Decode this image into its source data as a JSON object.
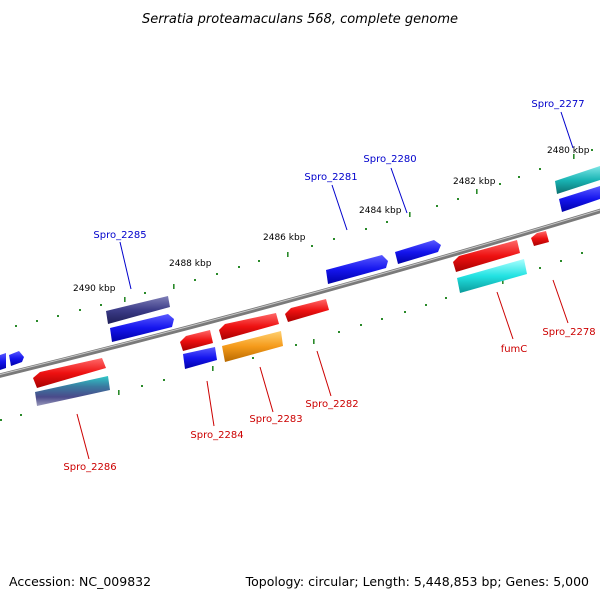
{
  "title": "Serratia proteamaculans 568, complete genome",
  "footer": {
    "accession": "Accession: NC_009832",
    "summary": "Topology: circular; Length: 5,448,853 bp; Genes: 5,000"
  },
  "kbp_ticks": [
    "2490 kbp",
    "2488 kbp",
    "2486 kbp",
    "2484 kbp",
    "2482 kbp",
    "2480 kbp"
  ],
  "gene_labels": {
    "top": [
      "Spro_2285",
      "Spro_2281",
      "Spro_2280",
      "Spro_2277"
    ],
    "bottom": [
      "Spro_2286",
      "Spro_2284",
      "Spro_2283",
      "Spro_2282",
      "fumC",
      "Spro_2278"
    ]
  },
  "colors": {
    "forward_gene": "#1010ee",
    "reverse_gene": "#ee1010",
    "backbone": "#7a7a7a",
    "tick_green": "#2a8a2a",
    "forward_label": "#0000cc",
    "reverse_label": "#cc0000"
  }
}
